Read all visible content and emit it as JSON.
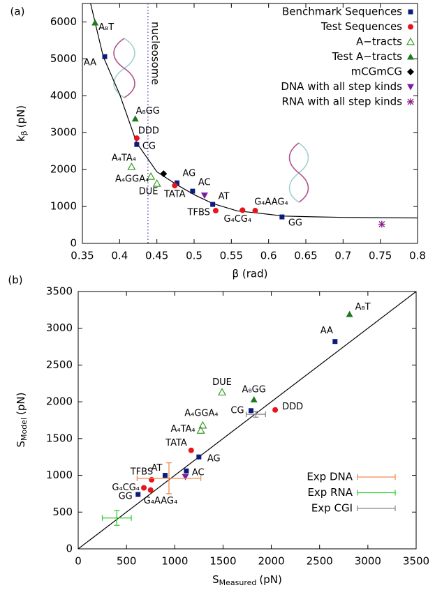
{
  "chart_data": [
    {
      "type": "scatter",
      "panel_label": "(a)",
      "x_label": "β (rad)",
      "y_label": {
        "text": "k",
        "sub": "β",
        "unit": "(pN)"
      },
      "xlim": [
        0.35,
        0.8
      ],
      "xticks": [
        0.35,
        0.4,
        0.45,
        0.5,
        0.55,
        0.6,
        0.65,
        0.7,
        0.75,
        0.8
      ],
      "ylim": [
        0,
        6500
      ],
      "yticks": [
        0,
        1000,
        2000,
        3000,
        4000,
        5000,
        6000
      ],
      "legend": "top-right",
      "fit": {
        "color": "#000000",
        "x": [
          0.361,
          0.378,
          0.4,
          0.423,
          0.45,
          0.4775,
          0.502,
          0.525,
          0.558,
          0.582,
          0.62,
          0.66,
          0.7,
          0.75,
          0.8
        ],
        "values": [
          6500,
          5060,
          4040,
          2720,
          1940,
          1580,
          1300,
          1080,
          880,
          830,
          740,
          720,
          705,
          695,
          690
        ]
      },
      "vline": {
        "x": 0.438,
        "label": "nucleosome",
        "color": "#6a4fd0"
      },
      "series": [
        {
          "name": "Benchmark Sequences",
          "color": "#0c1c7c",
          "marker": "square",
          "x": [
            0.38,
            0.423,
            0.477,
            0.498,
            0.525,
            0.618
          ],
          "values": [
            5060,
            2680,
            1640,
            1415,
            1057,
            717
          ],
          "labels": [
            "AA",
            "CG",
            "AG",
            "AC",
            "AT",
            "GG"
          ]
        },
        {
          "name": "Test Sequences",
          "color": "#e8141c",
          "marker": "circle",
          "x": [
            0.423,
            0.474,
            0.529,
            0.565,
            0.582
          ],
          "values": [
            2850,
            1566,
            887,
            900,
            887
          ],
          "labels": [
            "DDD",
            "TATA",
            "TFBS",
            "G₄CG₄",
            "G₄AAG₄"
          ]
        },
        {
          "name": "A−tracts",
          "color": "#3a9a2a",
          "marker": "triangle-open",
          "x": [
            0.416,
            0.442,
            0.45
          ],
          "values": [
            2075,
            1811,
            1623
          ],
          "labels": [
            "A₄TA₄",
            "A₄GGA₄",
            "DUE"
          ]
        },
        {
          "name": "Test A−tracts",
          "color": "#1e7a1e",
          "marker": "triangle",
          "x": [
            0.367,
            0.421
          ],
          "values": [
            5981,
            3377
          ],
          "labels": [
            "A₈T",
            "A₈GG"
          ]
        },
        {
          "name": "mCGmCG",
          "color": "#000000",
          "marker": "diamond",
          "x": [
            0.459
          ],
          "values": [
            1887
          ]
        },
        {
          "name": "DNA with all step kinds",
          "color": "#7a1fa0",
          "marker": "triangle-down",
          "x": [
            0.514
          ],
          "values": [
            1302
          ]
        },
        {
          "name": "RNA with all step kinds",
          "color": "#8a1f8a",
          "marker": "star",
          "x": [
            0.752
          ],
          "values": [
            520
          ]
        }
      ]
    },
    {
      "type": "scatter",
      "panel_label": "(b)",
      "x_label": {
        "text": "S",
        "sub": "Measured",
        "unit": "(pN)"
      },
      "y_label": {
        "text": "S",
        "sub": "Model",
        "unit": "(pN)"
      },
      "xlim": [
        0,
        3500
      ],
      "xticks": [
        0,
        500,
        1000,
        1500,
        2000,
        2500,
        3000,
        3500
      ],
      "ylim": [
        0,
        3500
      ],
      "yticks": [
        0,
        500,
        1000,
        1500,
        2000,
        2500,
        3000,
        3500
      ],
      "legend": "bottom-right",
      "fit": {
        "color": "#000000",
        "x": [
          0,
          3500
        ],
        "values": [
          0,
          3500
        ]
      },
      "series": [
        {
          "color": "#0c1c7c",
          "marker": "square",
          "x": [
            2660,
            1790,
            1250,
            1120,
            900,
            620
          ],
          "values": [
            2820,
            1880,
            1250,
            1060,
            1000,
            740
          ],
          "labels": [
            "AA",
            "CG",
            "AG",
            "AC",
            "AT",
            "GG"
          ]
        },
        {
          "color": "#e8141c",
          "marker": "circle",
          "x": [
            2040,
            1170,
            760,
            680,
            750
          ],
          "values": [
            1890,
            1340,
            940,
            830,
            800
          ],
          "labels": [
            "DDD",
            "TATA",
            "TFBS",
            "G₄CG₄",
            "G₄AAG₄"
          ]
        },
        {
          "color": "#3a9a2a",
          "marker": "triangle-open",
          "x": [
            1490,
            1290,
            1270
          ],
          "values": [
            2130,
            1680,
            1610
          ],
          "labels": [
            "DUE",
            "A₄GGA₄",
            "A₄TA₄"
          ]
        },
        {
          "color": "#1e7a1e",
          "marker": "triangle",
          "x": [
            2810,
            1820
          ],
          "values": [
            3190,
            2030
          ],
          "labels": [
            "A₈T",
            "A₈GG"
          ]
        },
        {
          "color": "#7a1fa0",
          "marker": "triangle-down",
          "x": [
            1110
          ],
          "values": [
            980
          ]
        },
        {
          "name": "Exp DNA",
          "color": "#f08c50",
          "marker": "errorbar",
          "x": [
            940
          ],
          "values": [
            960
          ],
          "xerr": [
            330
          ],
          "yerr": [
            210
          ]
        },
        {
          "name": "Exp RNA",
          "color": "#33cc33",
          "marker": "errorbar",
          "x": [
            400
          ],
          "values": [
            420
          ],
          "xerr": [
            150
          ],
          "yerr": [
            100
          ]
        },
        {
          "name": "Exp CGI",
          "color": "#888888",
          "marker": "errorbar",
          "x": [
            1840
          ],
          "values": [
            1830
          ],
          "xerr": [
            100
          ],
          "yerr": [
            40
          ]
        }
      ]
    }
  ]
}
